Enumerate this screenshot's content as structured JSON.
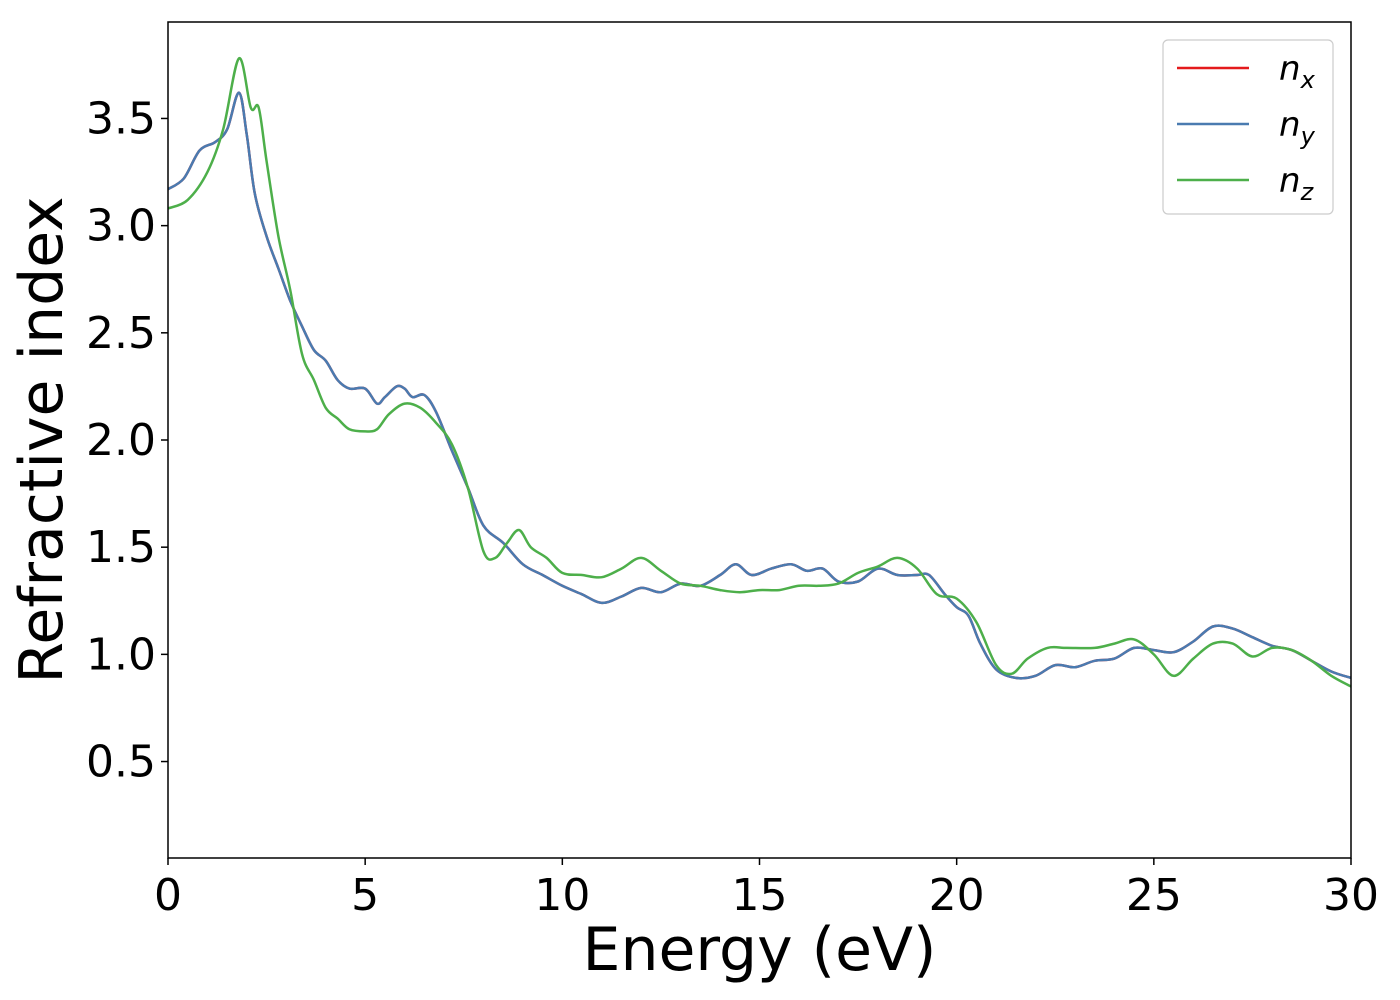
{
  "chart_data": {
    "type": "line",
    "xlabel": "Energy (eV)",
    "ylabel": "Refractive index",
    "xlim": [
      0,
      30
    ],
    "ylim": [
      0.05,
      3.95
    ],
    "xticks": [
      0,
      5,
      10,
      15,
      20,
      25,
      30
    ],
    "xtick_labels": [
      "0",
      "5",
      "10",
      "15",
      "20",
      "25",
      "30"
    ],
    "yticks": [
      0.5,
      1.0,
      1.5,
      2.0,
      2.5,
      3.0,
      3.5
    ],
    "ytick_labels": [
      "0.5",
      "1.0",
      "1.5",
      "2.0",
      "2.5",
      "3.0",
      "3.5"
    ],
    "grid": false,
    "legend_position": "top-right",
    "series": [
      {
        "name": "n_x",
        "label_main": "n",
        "label_sub": "x",
        "color": "#e41a1c",
        "x": [
          0,
          0.4,
          0.8,
          1.2,
          1.5,
          1.8,
          2.0,
          2.2,
          2.5,
          2.8,
          3.1,
          3.4,
          3.7,
          4.0,
          4.3,
          4.6,
          5.0,
          5.3,
          5.5,
          5.8,
          6.0,
          6.2,
          6.5,
          6.8,
          7.2,
          7.6,
          8.0,
          8.5,
          9.0,
          9.5,
          10.0,
          10.5,
          11.0,
          11.5,
          12.0,
          12.5,
          13.0,
          13.5,
          14.0,
          14.4,
          14.8,
          15.3,
          15.8,
          16.2,
          16.6,
          17.0,
          17.5,
          18.0,
          18.5,
          19.0,
          19.3,
          19.7,
          20.0,
          20.3,
          20.6,
          21.0,
          21.5,
          22.0,
          22.5,
          23.0,
          23.5,
          24.0,
          24.5,
          25.0,
          25.5,
          26.0,
          26.5,
          27.0,
          27.5,
          28.0,
          28.5,
          29.0,
          29.5,
          30.0
        ],
        "y": [
          3.17,
          3.22,
          3.35,
          3.39,
          3.45,
          3.62,
          3.42,
          3.15,
          2.95,
          2.8,
          2.65,
          2.53,
          2.42,
          2.37,
          2.28,
          2.24,
          2.24,
          2.17,
          2.2,
          2.25,
          2.24,
          2.2,
          2.21,
          2.13,
          1.95,
          1.78,
          1.6,
          1.52,
          1.42,
          1.37,
          1.32,
          1.28,
          1.24,
          1.27,
          1.31,
          1.29,
          1.33,
          1.32,
          1.37,
          1.42,
          1.37,
          1.4,
          1.42,
          1.39,
          1.4,
          1.34,
          1.34,
          1.4,
          1.37,
          1.37,
          1.37,
          1.28,
          1.22,
          1.18,
          1.05,
          0.93,
          0.89,
          0.9,
          0.95,
          0.94,
          0.97,
          0.98,
          1.03,
          1.02,
          1.01,
          1.06,
          1.13,
          1.12,
          1.08,
          1.04,
          1.02,
          0.97,
          0.92,
          0.89
        ]
      },
      {
        "name": "n_y",
        "label_main": "n",
        "label_sub": "y",
        "color": "#4a7bb0",
        "x": [
          0,
          0.4,
          0.8,
          1.2,
          1.5,
          1.8,
          2.0,
          2.2,
          2.5,
          2.8,
          3.1,
          3.4,
          3.7,
          4.0,
          4.3,
          4.6,
          5.0,
          5.3,
          5.5,
          5.8,
          6.0,
          6.2,
          6.5,
          6.8,
          7.2,
          7.6,
          8.0,
          8.5,
          9.0,
          9.5,
          10.0,
          10.5,
          11.0,
          11.5,
          12.0,
          12.5,
          13.0,
          13.5,
          14.0,
          14.4,
          14.8,
          15.3,
          15.8,
          16.2,
          16.6,
          17.0,
          17.5,
          18.0,
          18.5,
          19.0,
          19.3,
          19.7,
          20.0,
          20.3,
          20.6,
          21.0,
          21.5,
          22.0,
          22.5,
          23.0,
          23.5,
          24.0,
          24.5,
          25.0,
          25.5,
          26.0,
          26.5,
          27.0,
          27.5,
          28.0,
          28.5,
          29.0,
          29.5,
          30.0
        ],
        "y": [
          3.17,
          3.22,
          3.35,
          3.39,
          3.45,
          3.62,
          3.42,
          3.15,
          2.95,
          2.8,
          2.65,
          2.53,
          2.42,
          2.37,
          2.28,
          2.24,
          2.24,
          2.17,
          2.2,
          2.25,
          2.24,
          2.2,
          2.21,
          2.13,
          1.95,
          1.78,
          1.6,
          1.52,
          1.42,
          1.37,
          1.32,
          1.28,
          1.24,
          1.27,
          1.31,
          1.29,
          1.33,
          1.32,
          1.37,
          1.42,
          1.37,
          1.4,
          1.42,
          1.39,
          1.4,
          1.34,
          1.34,
          1.4,
          1.37,
          1.37,
          1.37,
          1.28,
          1.22,
          1.18,
          1.05,
          0.93,
          0.89,
          0.9,
          0.95,
          0.94,
          0.97,
          0.98,
          1.03,
          1.02,
          1.01,
          1.06,
          1.13,
          1.12,
          1.08,
          1.04,
          1.02,
          0.97,
          0.92,
          0.89
        ]
      },
      {
        "name": "n_z",
        "label_main": "n",
        "label_sub": "z",
        "color": "#4daf4a",
        "x": [
          0,
          0.5,
          1.0,
          1.4,
          1.8,
          2.1,
          2.3,
          2.5,
          2.8,
          3.1,
          3.4,
          3.7,
          4.0,
          4.3,
          4.6,
          5.0,
          5.3,
          5.6,
          6.0,
          6.4,
          6.8,
          7.2,
          7.6,
          8.0,
          8.3,
          8.6,
          8.9,
          9.2,
          9.6,
          10.0,
          10.5,
          11.0,
          11.5,
          12.0,
          12.5,
          13.0,
          13.5,
          14.0,
          14.5,
          15.0,
          15.5,
          16.0,
          16.5,
          17.0,
          17.5,
          18.0,
          18.5,
          19.0,
          19.5,
          20.0,
          20.5,
          21.0,
          21.4,
          21.8,
          22.3,
          22.8,
          23.5,
          24.0,
          24.5,
          25.0,
          25.5,
          26.0,
          26.5,
          27.0,
          27.5,
          28.0,
          28.5,
          29.0,
          29.5,
          30.0
        ],
        "y": [
          3.08,
          3.12,
          3.25,
          3.45,
          3.78,
          3.55,
          3.55,
          3.3,
          2.95,
          2.7,
          2.4,
          2.28,
          2.15,
          2.1,
          2.05,
          2.04,
          2.05,
          2.12,
          2.17,
          2.15,
          2.08,
          1.98,
          1.78,
          1.48,
          1.45,
          1.52,
          1.58,
          1.5,
          1.45,
          1.38,
          1.37,
          1.36,
          1.4,
          1.45,
          1.39,
          1.33,
          1.32,
          1.3,
          1.29,
          1.3,
          1.3,
          1.32,
          1.32,
          1.33,
          1.38,
          1.41,
          1.45,
          1.4,
          1.28,
          1.26,
          1.15,
          0.95,
          0.91,
          0.98,
          1.03,
          1.03,
          1.03,
          1.05,
          1.07,
          1.0,
          0.9,
          0.98,
          1.05,
          1.05,
          0.99,
          1.03,
          1.02,
          0.97,
          0.9,
          0.85
        ]
      }
    ]
  }
}
